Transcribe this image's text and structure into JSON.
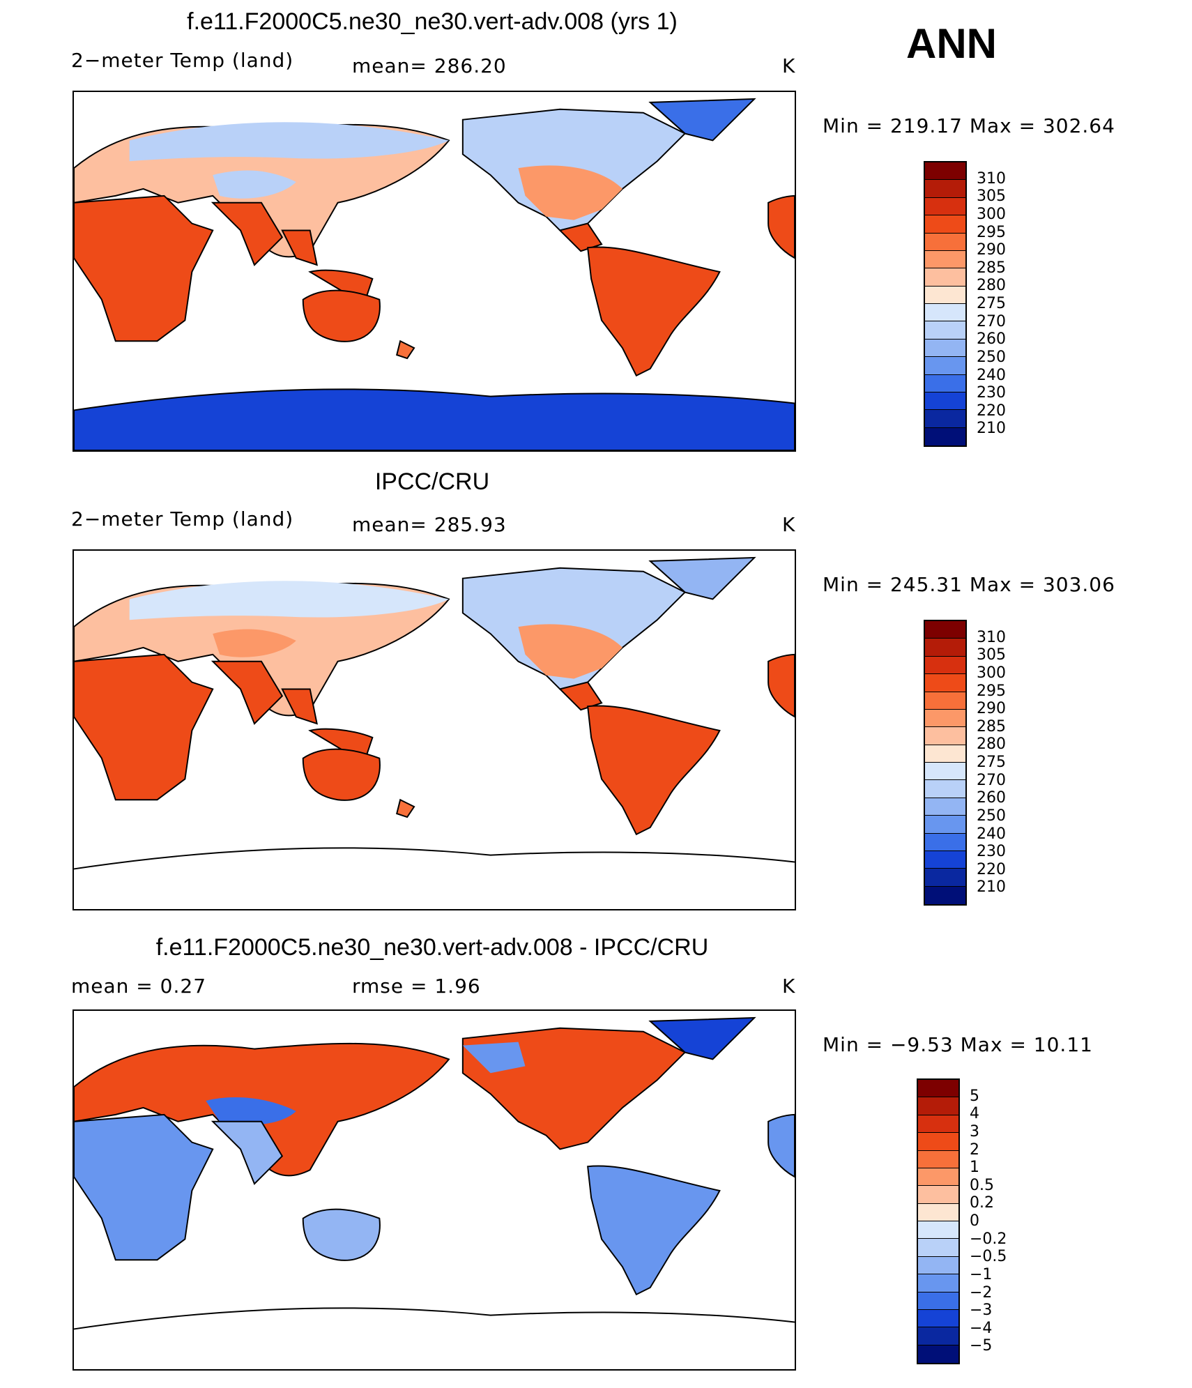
{
  "season": "ANN",
  "panels": [
    {
      "title": "f.e11.F2000C5.ne30_ne30.vert-adv.008 (yrs 1)",
      "left_label": "2−meter Temp (land)",
      "mid_label": "mean=  286.20",
      "units": "K",
      "minmax": "Min  =  219.17  Max  =  302.64",
      "levels": [
        "310",
        "305",
        "300",
        "295",
        "290",
        "285",
        "280",
        "275",
        "270",
        "260",
        "250",
        "240",
        "230",
        "220",
        "210"
      ],
      "colors": [
        "#7d0000",
        "#b41c08",
        "#d7300f",
        "#ee4b18",
        "#f7703a",
        "#fc9868",
        "#fdbf9f",
        "#fde6d2",
        "#d6e6fb",
        "#b9d1f8",
        "#93b5f3",
        "#6896ef",
        "#3a6fe8",
        "#1543d6",
        "#0a28a0",
        "#000f78"
      ]
    },
    {
      "title": "IPCC/CRU",
      "left_label": "2−meter Temp (land)",
      "mid_label": "mean=  285.93",
      "units": "K",
      "minmax": "Min  =  245.31  Max  =  303.06",
      "levels": [
        "310",
        "305",
        "300",
        "295",
        "290",
        "285",
        "280",
        "275",
        "270",
        "260",
        "250",
        "240",
        "230",
        "220",
        "210"
      ],
      "colors": [
        "#7d0000",
        "#b41c08",
        "#d7300f",
        "#ee4b18",
        "#f7703a",
        "#fc9868",
        "#fdbf9f",
        "#fde6d2",
        "#d6e6fb",
        "#b9d1f8",
        "#93b5f3",
        "#6896ef",
        "#3a6fe8",
        "#1543d6",
        "#0a28a0",
        "#000f78"
      ]
    },
    {
      "title": "f.e11.F2000C5.ne30_ne30.vert-adv.008 - IPCC/CRU",
      "left_label": "mean =     0.27",
      "mid_label": "rmse  =     1.96",
      "units": "K",
      "minmax": "Min  =    −9.53  Max  =    10.11",
      "levels": [
        "5",
        "4",
        "3",
        "2",
        "1",
        "0.5",
        "0.2",
        "0",
        "−0.2",
        "−0.5",
        "−1",
        "−2",
        "−3",
        "−4",
        "−5"
      ],
      "colors": [
        "#7d0000",
        "#b41c08",
        "#d7300f",
        "#ee4b18",
        "#f7703a",
        "#fc9868",
        "#fdbf9f",
        "#fde6d2",
        "#d6e6fb",
        "#b9d1f8",
        "#93b5f3",
        "#6896ef",
        "#3a6fe8",
        "#1543d6",
        "#0a28a0",
        "#000f78"
      ]
    }
  ]
}
